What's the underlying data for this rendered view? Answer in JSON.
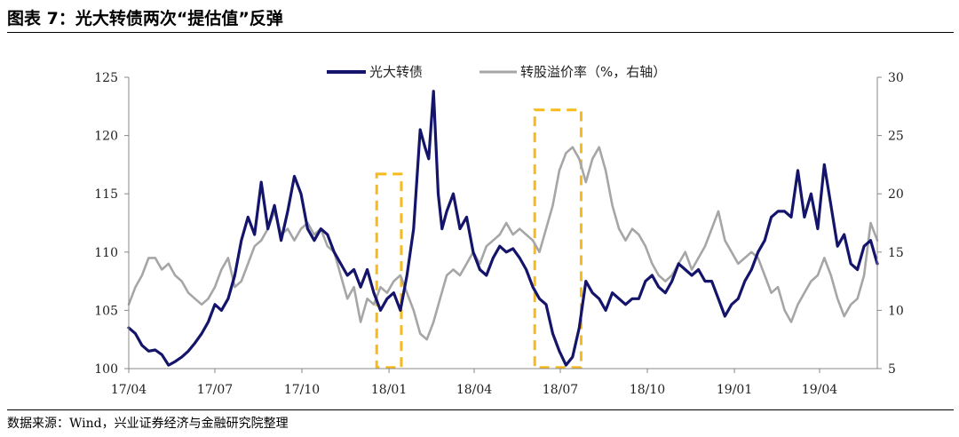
{
  "header": {
    "title": "图表 7：光大转债两次“提估值”反弹"
  },
  "footer": {
    "source": "数据来源：Wind，兴业证券经济与金融研究院整理"
  },
  "chart_data": {
    "type": "line",
    "title": "图表 7：光大转债两次“提估值”反弹",
    "x_range": [
      "2017-04",
      "2019-06"
    ],
    "x_ticks": [
      "17/04",
      "17/07",
      "17/10",
      "18/01",
      "18/04",
      "18/07",
      "18/10",
      "19/01",
      "19/04"
    ],
    "y_left": {
      "range": [
        100,
        125
      ],
      "ticks": [
        100,
        105,
        110,
        115,
        120,
        125
      ]
    },
    "y_right": {
      "range": [
        5,
        30
      ],
      "ticks": [
        5,
        10,
        15,
        20,
        25,
        30
      ]
    },
    "legend_position": "top-center",
    "grid": false,
    "highlight_boxes": [
      {
        "x_start": "2017-12-19",
        "x_end": "2018-01-14",
        "y_min": 100.1,
        "y_max": 116.7
      },
      {
        "x_start": "2018-06-04",
        "x_end": "2018-07-23",
        "y_min": 100.1,
        "y_max": 122.2
      }
    ],
    "series": [
      {
        "name": "光大转债",
        "axis": "left",
        "color": "#14146b",
        "points": [
          [
            "2017-04-01",
            103.5
          ],
          [
            "2017-04-08",
            103.0
          ],
          [
            "2017-04-15",
            102.0
          ],
          [
            "2017-04-22",
            101.5
          ],
          [
            "2017-04-29",
            101.6
          ],
          [
            "2017-05-06",
            101.2
          ],
          [
            "2017-05-13",
            100.3
          ],
          [
            "2017-05-20",
            100.6
          ],
          [
            "2017-05-27",
            101.0
          ],
          [
            "2017-06-03",
            101.5
          ],
          [
            "2017-06-10",
            102.2
          ],
          [
            "2017-06-17",
            103.0
          ],
          [
            "2017-06-24",
            104.0
          ],
          [
            "2017-07-01",
            105.5
          ],
          [
            "2017-07-08",
            105.0
          ],
          [
            "2017-07-15",
            106.0
          ],
          [
            "2017-07-22",
            108.0
          ],
          [
            "2017-07-29",
            111.0
          ],
          [
            "2017-08-05",
            113.0
          ],
          [
            "2017-08-12",
            111.5
          ],
          [
            "2017-08-19",
            116.0
          ],
          [
            "2017-08-26",
            112.0
          ],
          [
            "2017-09-02",
            114.0
          ],
          [
            "2017-09-09",
            111.0
          ],
          [
            "2017-09-16",
            113.5
          ],
          [
            "2017-09-23",
            116.5
          ],
          [
            "2017-09-30",
            115.0
          ],
          [
            "2017-10-07",
            112.0
          ],
          [
            "2017-10-14",
            111.0
          ],
          [
            "2017-10-21",
            112.0
          ],
          [
            "2017-10-28",
            111.5
          ],
          [
            "2017-11-04",
            110.0
          ],
          [
            "2017-11-11",
            109.0
          ],
          [
            "2017-11-18",
            108.0
          ],
          [
            "2017-11-25",
            108.5
          ],
          [
            "2017-12-02",
            107.0
          ],
          [
            "2017-12-09",
            108.5
          ],
          [
            "2017-12-16",
            106.5
          ],
          [
            "2017-12-23",
            105.0
          ],
          [
            "2017-12-30",
            106.0
          ],
          [
            "2018-01-06",
            106.5
          ],
          [
            "2018-01-13",
            105.0
          ],
          [
            "2018-01-20",
            108.0
          ],
          [
            "2018-01-27",
            112.0
          ],
          [
            "2018-02-03",
            120.5
          ],
          [
            "2018-02-08",
            119.0
          ],
          [
            "2018-02-12",
            118.0
          ],
          [
            "2018-02-17",
            123.8
          ],
          [
            "2018-02-22",
            115.0
          ],
          [
            "2018-02-26",
            112.0
          ],
          [
            "2018-03-03",
            113.5
          ],
          [
            "2018-03-10",
            115.0
          ],
          [
            "2018-03-17",
            112.0
          ],
          [
            "2018-03-24",
            113.0
          ],
          [
            "2018-03-31",
            110.0
          ],
          [
            "2018-04-07",
            108.5
          ],
          [
            "2018-04-14",
            108.0
          ],
          [
            "2018-04-21",
            109.5
          ],
          [
            "2018-04-28",
            110.5
          ],
          [
            "2018-05-05",
            110.0
          ],
          [
            "2018-05-12",
            110.3
          ],
          [
            "2018-05-19",
            109.5
          ],
          [
            "2018-05-26",
            108.5
          ],
          [
            "2018-06-02",
            107.0
          ],
          [
            "2018-06-09",
            106.0
          ],
          [
            "2018-06-16",
            105.5
          ],
          [
            "2018-06-23",
            103.0
          ],
          [
            "2018-06-30",
            101.5
          ],
          [
            "2018-07-07",
            100.3
          ],
          [
            "2018-07-14",
            101.0
          ],
          [
            "2018-07-21",
            103.5
          ],
          [
            "2018-07-28",
            107.5
          ],
          [
            "2018-08-04",
            106.5
          ],
          [
            "2018-08-11",
            106.0
          ],
          [
            "2018-08-18",
            105.0
          ],
          [
            "2018-08-25",
            106.5
          ],
          [
            "2018-09-01",
            106.0
          ],
          [
            "2018-09-08",
            105.5
          ],
          [
            "2018-09-15",
            106.0
          ],
          [
            "2018-09-22",
            106.0
          ],
          [
            "2018-09-29",
            107.5
          ],
          [
            "2018-10-06",
            108.0
          ],
          [
            "2018-10-13",
            107.0
          ],
          [
            "2018-10-20",
            106.5
          ],
          [
            "2018-10-27",
            107.5
          ],
          [
            "2018-11-03",
            109.0
          ],
          [
            "2018-11-10",
            108.5
          ],
          [
            "2018-11-17",
            108.0
          ],
          [
            "2018-11-24",
            108.5
          ],
          [
            "2018-12-01",
            107.5
          ],
          [
            "2018-12-08",
            107.5
          ],
          [
            "2018-12-15",
            106.0
          ],
          [
            "2018-12-22",
            104.5
          ],
          [
            "2018-12-29",
            105.5
          ],
          [
            "2019-01-05",
            106.0
          ],
          [
            "2019-01-12",
            107.5
          ],
          [
            "2019-01-19",
            108.5
          ],
          [
            "2019-01-26",
            110.0
          ],
          [
            "2019-02-02",
            111.0
          ],
          [
            "2019-02-09",
            113.0
          ],
          [
            "2019-02-16",
            113.5
          ],
          [
            "2019-02-23",
            113.5
          ],
          [
            "2019-03-02",
            113.0
          ],
          [
            "2019-03-09",
            117.0
          ],
          [
            "2019-03-16",
            113.0
          ],
          [
            "2019-03-23",
            115.0
          ],
          [
            "2019-03-30",
            112.0
          ],
          [
            "2019-04-06",
            117.5
          ],
          [
            "2019-04-13",
            114.0
          ],
          [
            "2019-04-20",
            110.5
          ],
          [
            "2019-04-27",
            111.5
          ],
          [
            "2019-05-04",
            109.0
          ],
          [
            "2019-05-11",
            108.5
          ],
          [
            "2019-05-18",
            110.5
          ],
          [
            "2019-05-25",
            111.0
          ],
          [
            "2019-06-01",
            109.0
          ]
        ]
      },
      {
        "name": "转股溢价率（%，右轴）",
        "axis": "right",
        "color": "#a6a6a6",
        "points": [
          [
            "2017-04-01",
            10.5
          ],
          [
            "2017-04-08",
            12.0
          ],
          [
            "2017-04-15",
            13.0
          ],
          [
            "2017-04-22",
            14.5
          ],
          [
            "2017-04-29",
            14.5
          ],
          [
            "2017-05-06",
            13.5
          ],
          [
            "2017-05-13",
            14.0
          ],
          [
            "2017-05-20",
            13.0
          ],
          [
            "2017-05-27",
            12.5
          ],
          [
            "2017-06-03",
            11.5
          ],
          [
            "2017-06-10",
            11.0
          ],
          [
            "2017-06-17",
            10.5
          ],
          [
            "2017-06-24",
            11.0
          ],
          [
            "2017-07-01",
            12.0
          ],
          [
            "2017-07-08",
            13.5
          ],
          [
            "2017-07-15",
            14.5
          ],
          [
            "2017-07-22",
            12.0
          ],
          [
            "2017-07-29",
            12.5
          ],
          [
            "2017-08-05",
            14.0
          ],
          [
            "2017-08-12",
            15.5
          ],
          [
            "2017-08-19",
            16.0
          ],
          [
            "2017-08-26",
            17.0
          ],
          [
            "2017-09-02",
            18.5
          ],
          [
            "2017-09-09",
            16.5
          ],
          [
            "2017-09-16",
            17.0
          ],
          [
            "2017-09-23",
            16.0
          ],
          [
            "2017-09-30",
            17.0
          ],
          [
            "2017-10-07",
            17.5
          ],
          [
            "2017-10-14",
            16.5
          ],
          [
            "2017-10-21",
            17.0
          ],
          [
            "2017-10-28",
            15.5
          ],
          [
            "2017-11-04",
            15.0
          ],
          [
            "2017-11-11",
            13.0
          ],
          [
            "2017-11-18",
            11.0
          ],
          [
            "2017-11-25",
            12.0
          ],
          [
            "2017-12-02",
            9.0
          ],
          [
            "2017-12-09",
            11.0
          ],
          [
            "2017-12-16",
            10.5
          ],
          [
            "2017-12-23",
            12.0
          ],
          [
            "2017-12-30",
            11.5
          ],
          [
            "2018-01-06",
            12.5
          ],
          [
            "2018-01-13",
            13.0
          ],
          [
            "2018-01-20",
            11.5
          ],
          [
            "2018-01-27",
            10.0
          ],
          [
            "2018-02-03",
            8.0
          ],
          [
            "2018-02-10",
            7.5
          ],
          [
            "2018-02-17",
            9.0
          ],
          [
            "2018-02-24",
            11.0
          ],
          [
            "2018-03-03",
            13.0
          ],
          [
            "2018-03-10",
            13.5
          ],
          [
            "2018-03-17",
            13.0
          ],
          [
            "2018-03-24",
            14.0
          ],
          [
            "2018-03-31",
            15.0
          ],
          [
            "2018-04-07",
            14.0
          ],
          [
            "2018-04-14",
            15.5
          ],
          [
            "2018-04-21",
            16.0
          ],
          [
            "2018-04-28",
            16.5
          ],
          [
            "2018-05-05",
            17.5
          ],
          [
            "2018-05-12",
            16.5
          ],
          [
            "2018-05-19",
            17.0
          ],
          [
            "2018-05-26",
            16.5
          ],
          [
            "2018-06-02",
            16.0
          ],
          [
            "2018-06-09",
            15.0
          ],
          [
            "2018-06-16",
            17.0
          ],
          [
            "2018-06-23",
            19.0
          ],
          [
            "2018-06-30",
            22.0
          ],
          [
            "2018-07-07",
            23.5
          ],
          [
            "2018-07-14",
            24.0
          ],
          [
            "2018-07-21",
            23.0
          ],
          [
            "2018-07-28",
            21.0
          ],
          [
            "2018-08-04",
            23.0
          ],
          [
            "2018-08-11",
            24.0
          ],
          [
            "2018-08-18",
            22.0
          ],
          [
            "2018-08-25",
            19.0
          ],
          [
            "2018-09-01",
            17.0
          ],
          [
            "2018-09-08",
            16.0
          ],
          [
            "2018-09-15",
            17.0
          ],
          [
            "2018-09-22",
            16.5
          ],
          [
            "2018-09-29",
            15.5
          ],
          [
            "2018-10-06",
            14.0
          ],
          [
            "2018-10-13",
            13.0
          ],
          [
            "2018-10-20",
            12.5
          ],
          [
            "2018-10-27",
            13.0
          ],
          [
            "2018-11-03",
            14.0
          ],
          [
            "2018-11-10",
            15.0
          ],
          [
            "2018-11-17",
            13.5
          ],
          [
            "2018-11-24",
            14.5
          ],
          [
            "2018-12-01",
            15.5
          ],
          [
            "2018-12-08",
            17.0
          ],
          [
            "2018-12-15",
            18.5
          ],
          [
            "2018-12-22",
            16.0
          ],
          [
            "2018-12-29",
            15.0
          ],
          [
            "2019-01-05",
            14.0
          ],
          [
            "2019-01-12",
            14.5
          ],
          [
            "2019-01-19",
            15.0
          ],
          [
            "2019-01-26",
            14.5
          ],
          [
            "2019-02-02",
            13.0
          ],
          [
            "2019-02-09",
            11.5
          ],
          [
            "2019-02-16",
            12.0
          ],
          [
            "2019-02-23",
            10.0
          ],
          [
            "2019-03-02",
            9.0
          ],
          [
            "2019-03-09",
            10.5
          ],
          [
            "2019-03-16",
            11.5
          ],
          [
            "2019-03-23",
            12.5
          ],
          [
            "2019-03-30",
            13.0
          ],
          [
            "2019-04-06",
            14.5
          ],
          [
            "2019-04-13",
            13.0
          ],
          [
            "2019-04-20",
            11.0
          ],
          [
            "2019-04-27",
            9.5
          ],
          [
            "2019-05-04",
            10.5
          ],
          [
            "2019-05-11",
            11.0
          ],
          [
            "2019-05-18",
            13.0
          ],
          [
            "2019-05-25",
            17.5
          ],
          [
            "2019-06-01",
            16.0
          ]
        ]
      }
    ]
  }
}
